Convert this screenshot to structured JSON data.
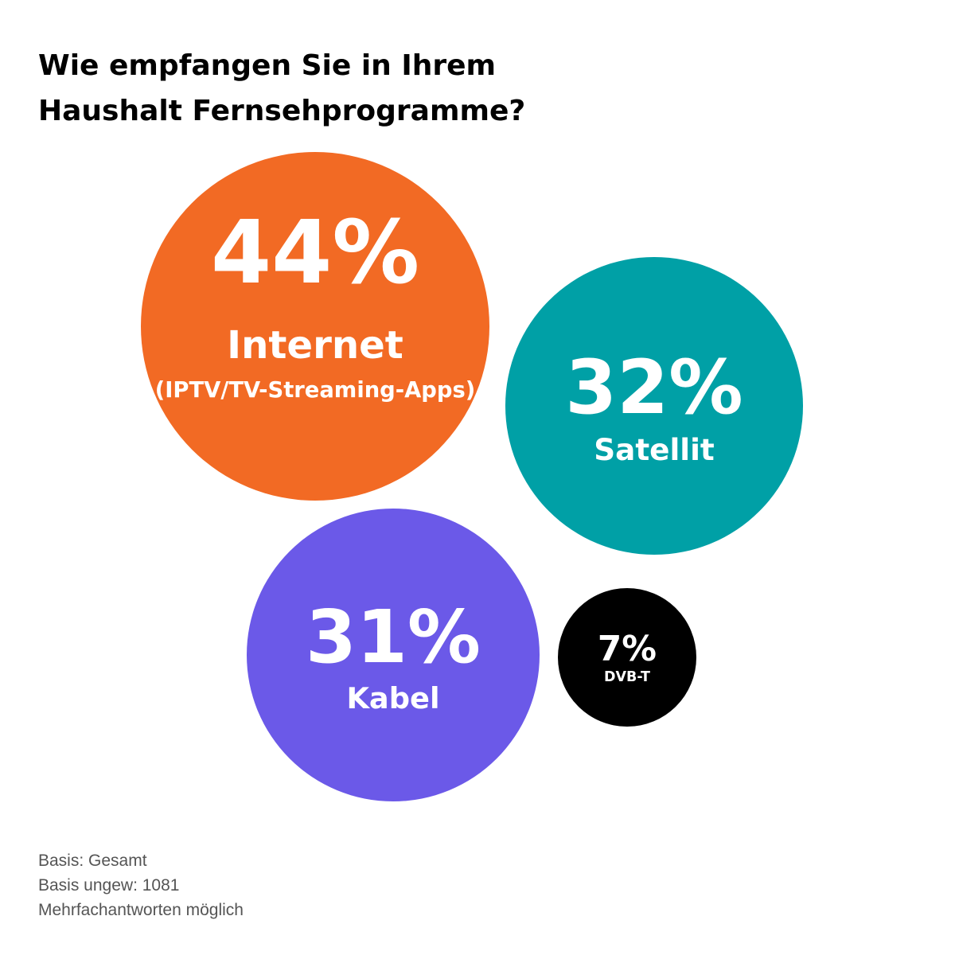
{
  "title": {
    "line1": "Wie empfangen Sie in Ihrem",
    "line2": "Haushalt Fernsehprogramme?"
  },
  "chart_data": {
    "type": "bubble",
    "unit": "%",
    "series": [
      {
        "label": "Internet",
        "sublabel": "(IPTV/TV-Streaming-Apps)",
        "value": 44,
        "value_label": "44%",
        "color": "#F26A24"
      },
      {
        "label": "Satellit",
        "sublabel": "",
        "value": 32,
        "value_label": "32%",
        "color": "#00A0A6"
      },
      {
        "label": "Kabel",
        "sublabel": "",
        "value": 31,
        "value_label": "31%",
        "color": "#6B59E8"
      },
      {
        "label": "DVB-T",
        "sublabel": "",
        "value": 7,
        "value_label": "7%",
        "color": "#000000"
      }
    ]
  },
  "footnotes": {
    "basis": "Basis: Gesamt",
    "basis_unweighted": "Basis ungew: 1081",
    "multiple": "Mehrfachantworten möglich"
  }
}
